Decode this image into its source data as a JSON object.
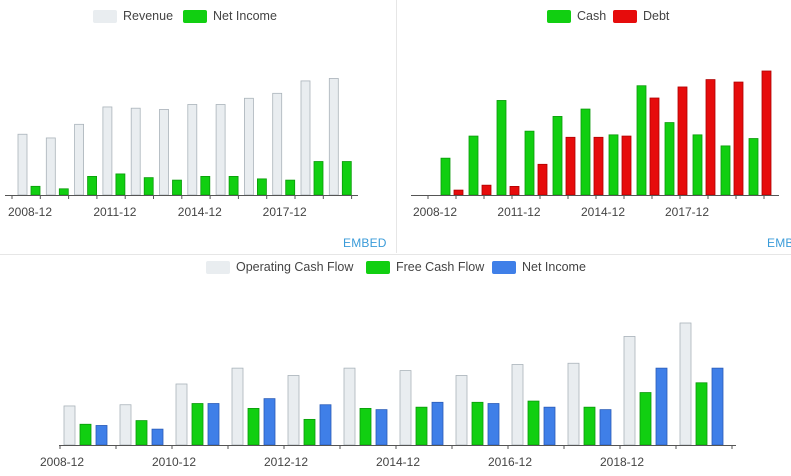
{
  "colors": {
    "revenue": "#e9edf0",
    "revenue_border": "#aab3ba",
    "green": "#11cf11",
    "green_border": "#0a9a0a",
    "red": "#e60c0c",
    "red_border": "#b00000",
    "blue": "#3f7fe8",
    "blue_border": "#2a5cb8",
    "embed": "#3a9bd9"
  },
  "embed_label": "EMBED",
  "chart_data": [
    {
      "id": "left",
      "type": "bar",
      "categories": [
        "2008-12",
        "2009-12",
        "2010-12",
        "2011-12",
        "2012-12",
        "2013-12",
        "2014-12",
        "2015-12",
        "2016-12",
        "2017-12",
        "2018-12",
        "2019-12"
      ],
      "tick_labels": [
        "2008-12",
        "2011-12",
        "2014-12",
        "2017-12"
      ],
      "series": [
        {
          "name": "Revenue",
          "color_key": "revenue",
          "values": [
            49,
            46,
            57,
            71,
            70,
            69,
            73,
            73,
            78,
            82,
            92,
            94
          ]
        },
        {
          "name": "Net Income",
          "color_key": "green",
          "values": [
            7,
            5,
            15,
            17,
            14,
            12,
            15,
            15,
            13,
            12,
            27,
            27
          ]
        }
      ],
      "ylim": [
        0,
        110
      ]
    },
    {
      "id": "right",
      "type": "bar",
      "categories": [
        "2008-12",
        "2009-12",
        "2010-12",
        "2011-12",
        "2012-12",
        "2013-12",
        "2014-12",
        "2015-12",
        "2016-12",
        "2017-12",
        "2018-12",
        "2019-12"
      ],
      "tick_labels": [
        "2008-12",
        "2011-12",
        "2014-12",
        "2017-12"
      ],
      "series": [
        {
          "name": "Cash",
          "color_key": "green",
          "values": [
            30,
            48,
            77,
            52,
            64,
            70,
            49,
            89,
            59,
            49,
            40,
            46
          ]
        },
        {
          "name": "Debt",
          "color_key": "red",
          "values": [
            4,
            8,
            7,
            25,
            47,
            47,
            48,
            79,
            88,
            94,
            92,
            101
          ]
        }
      ],
      "ylim": [
        0,
        110
      ]
    },
    {
      "id": "bottom",
      "type": "bar",
      "categories": [
        "2008-12",
        "2009-12",
        "2010-12",
        "2011-12",
        "2012-12",
        "2013-12",
        "2014-12",
        "2015-12",
        "2016-12",
        "2017-12",
        "2018-12",
        "2019-12"
      ],
      "tick_labels": [
        "2008-12",
        "2010-12",
        "2012-12",
        "2014-12",
        "2016-12",
        "2018-12"
      ],
      "series": [
        {
          "name": "Operating Cash Flow",
          "color_key": "revenue",
          "values": [
            32,
            33,
            50,
            63,
            57,
            63,
            61,
            57,
            66,
            67,
            89,
            100
          ]
        },
        {
          "name": "Free Cash Flow",
          "color_key": "green",
          "values": [
            17,
            20,
            34,
            30,
            21,
            30,
            31,
            35,
            36,
            31,
            43,
            51
          ]
        },
        {
          "name": "Net Income",
          "color_key": "blue",
          "values": [
            16,
            13,
            34,
            38,
            33,
            29,
            35,
            34,
            31,
            29,
            63,
            63
          ]
        }
      ],
      "ylim": [
        0,
        110
      ]
    }
  ]
}
